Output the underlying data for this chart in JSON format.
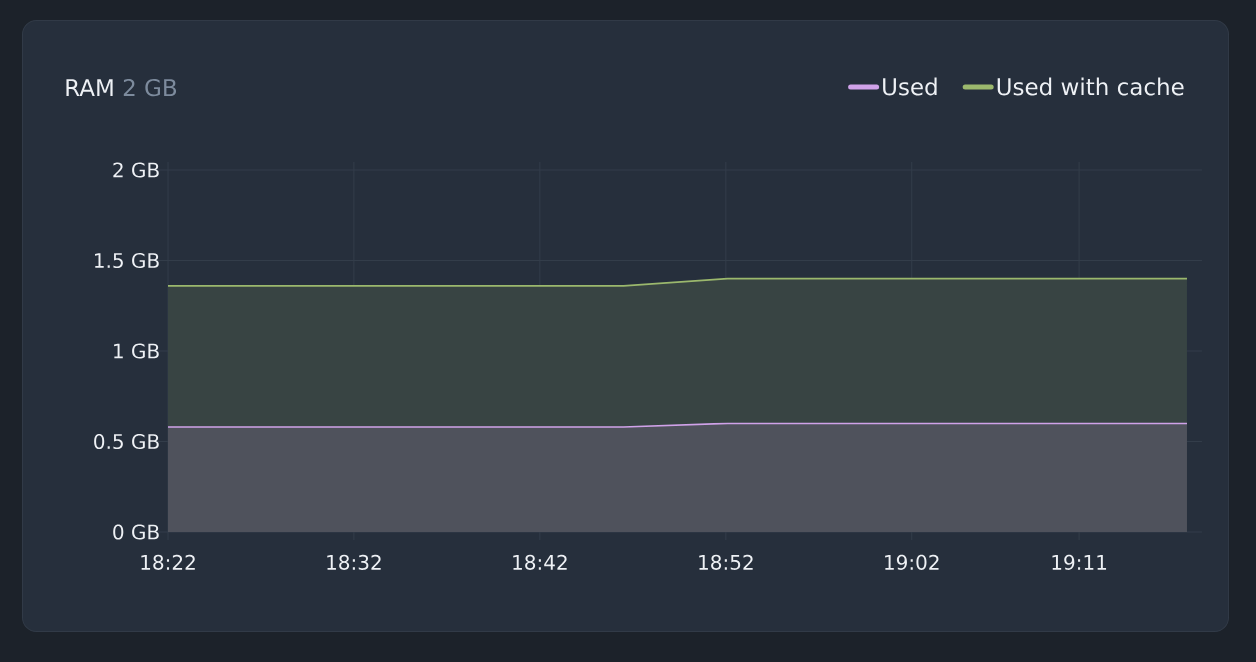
{
  "chart_data": {
    "type": "area",
    "title": "RAM",
    "subtitle": "2 GB",
    "x": [
      18.3667,
      18.775,
      18.8683,
      19.28
    ],
    "series": [
      {
        "name": "Used",
        "color": "#d0a2e9",
        "values": [
          0.58,
          0.58,
          0.6,
          0.6
        ]
      },
      {
        "name": "Used with cache",
        "color": "#9bb86d",
        "values": [
          1.36,
          1.36,
          1.4,
          1.4
        ]
      }
    ],
    "xlim": [
      18.3667,
      19.28
    ],
    "xticks": [
      {
        "value": 18.3667,
        "label": "18:22"
      },
      {
        "value": 18.5333,
        "label": "18:32"
      },
      {
        "value": 18.7,
        "label": "18:42"
      },
      {
        "value": 18.8667,
        "label": "18:52"
      },
      {
        "value": 19.0333,
        "label": "19:02"
      },
      {
        "value": 19.1833,
        "label": "19:11"
      }
    ],
    "ylim": [
      0,
      2
    ],
    "yticks": [
      {
        "value": 0,
        "label": "0 GB"
      },
      {
        "value": 0.5,
        "label": "0.5 GB"
      },
      {
        "value": 1,
        "label": "1 GB"
      },
      {
        "value": 1.5,
        "label": "1.5 GB"
      },
      {
        "value": 2,
        "label": "2 GB"
      }
    ],
    "grid": true,
    "legend": "top right",
    "marker": "none",
    "line_style": "solid"
  }
}
